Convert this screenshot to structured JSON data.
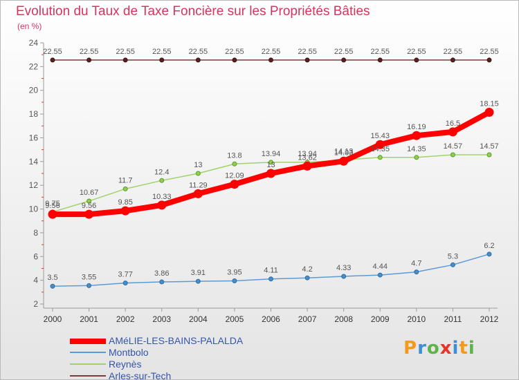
{
  "header": {
    "title": "Evolution du Taux de Taxe Foncière sur les Propriétés Bâties",
    "unit": "(en %)"
  },
  "logo": {
    "letters": [
      "P",
      "r",
      "o",
      "x",
      "i",
      "t",
      "i"
    ],
    "colors": [
      "#f39a1d",
      "#3d8fd1",
      "#5db44a",
      "#e8332a",
      "#3d8fd1",
      "#f39a1d",
      "#5db44a"
    ]
  },
  "chart_data": {
    "type": "line",
    "title": "Evolution du Taux de Taxe Foncière sur les Propriétés Bâties",
    "ylabel": "(en %)",
    "xlabel": "",
    "x": [
      2000,
      2001,
      2002,
      2003,
      2004,
      2005,
      2006,
      2007,
      2008,
      2009,
      2010,
      2011,
      2012
    ],
    "ylim": [
      2,
      24
    ],
    "yticks": [
      2,
      4,
      6,
      8,
      10,
      12,
      14,
      16,
      18,
      20,
      22,
      24
    ],
    "grid": false,
    "legend_position": "bottom-left",
    "series": [
      {
        "name": "AMéLIE-LES-BAINS-PALALDA",
        "color": "#ff0000",
        "values": [
          9.56,
          9.56,
          9.85,
          10.33,
          11.29,
          12.09,
          13,
          13.62,
          14.03,
          15.43,
          16.19,
          16.5,
          18.15
        ],
        "labels": [
          "9.56",
          "9.56",
          "9.85",
          "10.33",
          "11.29",
          "12.09",
          "13",
          "13.62",
          "14.03",
          "15.43",
          "16.19",
          "16.5",
          "18.15"
        ]
      },
      {
        "name": "Montbolo",
        "color": "#5b9bd5",
        "values": [
          3.5,
          3.55,
          3.77,
          3.86,
          3.91,
          3.95,
          4.11,
          4.2,
          4.33,
          4.44,
          4.7,
          5.3,
          6.2
        ],
        "labels": [
          "3.5",
          "3.55",
          "3.77",
          "3.86",
          "3.91",
          "3.95",
          "4.11",
          "4.2",
          "4.33",
          "4.44",
          "4.7",
          "5.3",
          "6.2"
        ]
      },
      {
        "name": "Reynès",
        "color": "#9ed36a",
        "values": [
          9.75,
          10.67,
          11.7,
          12.4,
          13,
          13.8,
          13.94,
          13.94,
          14.13,
          14.35,
          14.35,
          14.57,
          14.57
        ],
        "labels": [
          "9.75",
          "10.67",
          "11.7",
          "12.4",
          "13",
          "13.8",
          "13.94",
          "13.94",
          "14.13",
          "14.35",
          "14.35",
          "14.57",
          "14.57"
        ]
      },
      {
        "name": "Arles-sur-Tech",
        "color": "#7a3a3a",
        "values": [
          22.55,
          22.55,
          22.55,
          22.55,
          22.55,
          22.55,
          22.55,
          22.55,
          22.55,
          22.55,
          22.55,
          22.55,
          22.55
        ],
        "labels": [
          "22.55",
          "22.55",
          "22.55",
          "22.55",
          "22.55",
          "22.55",
          "22.55",
          "22.55",
          "22.55",
          "22.55",
          "22.55",
          "22.55",
          "22.55"
        ]
      }
    ]
  }
}
